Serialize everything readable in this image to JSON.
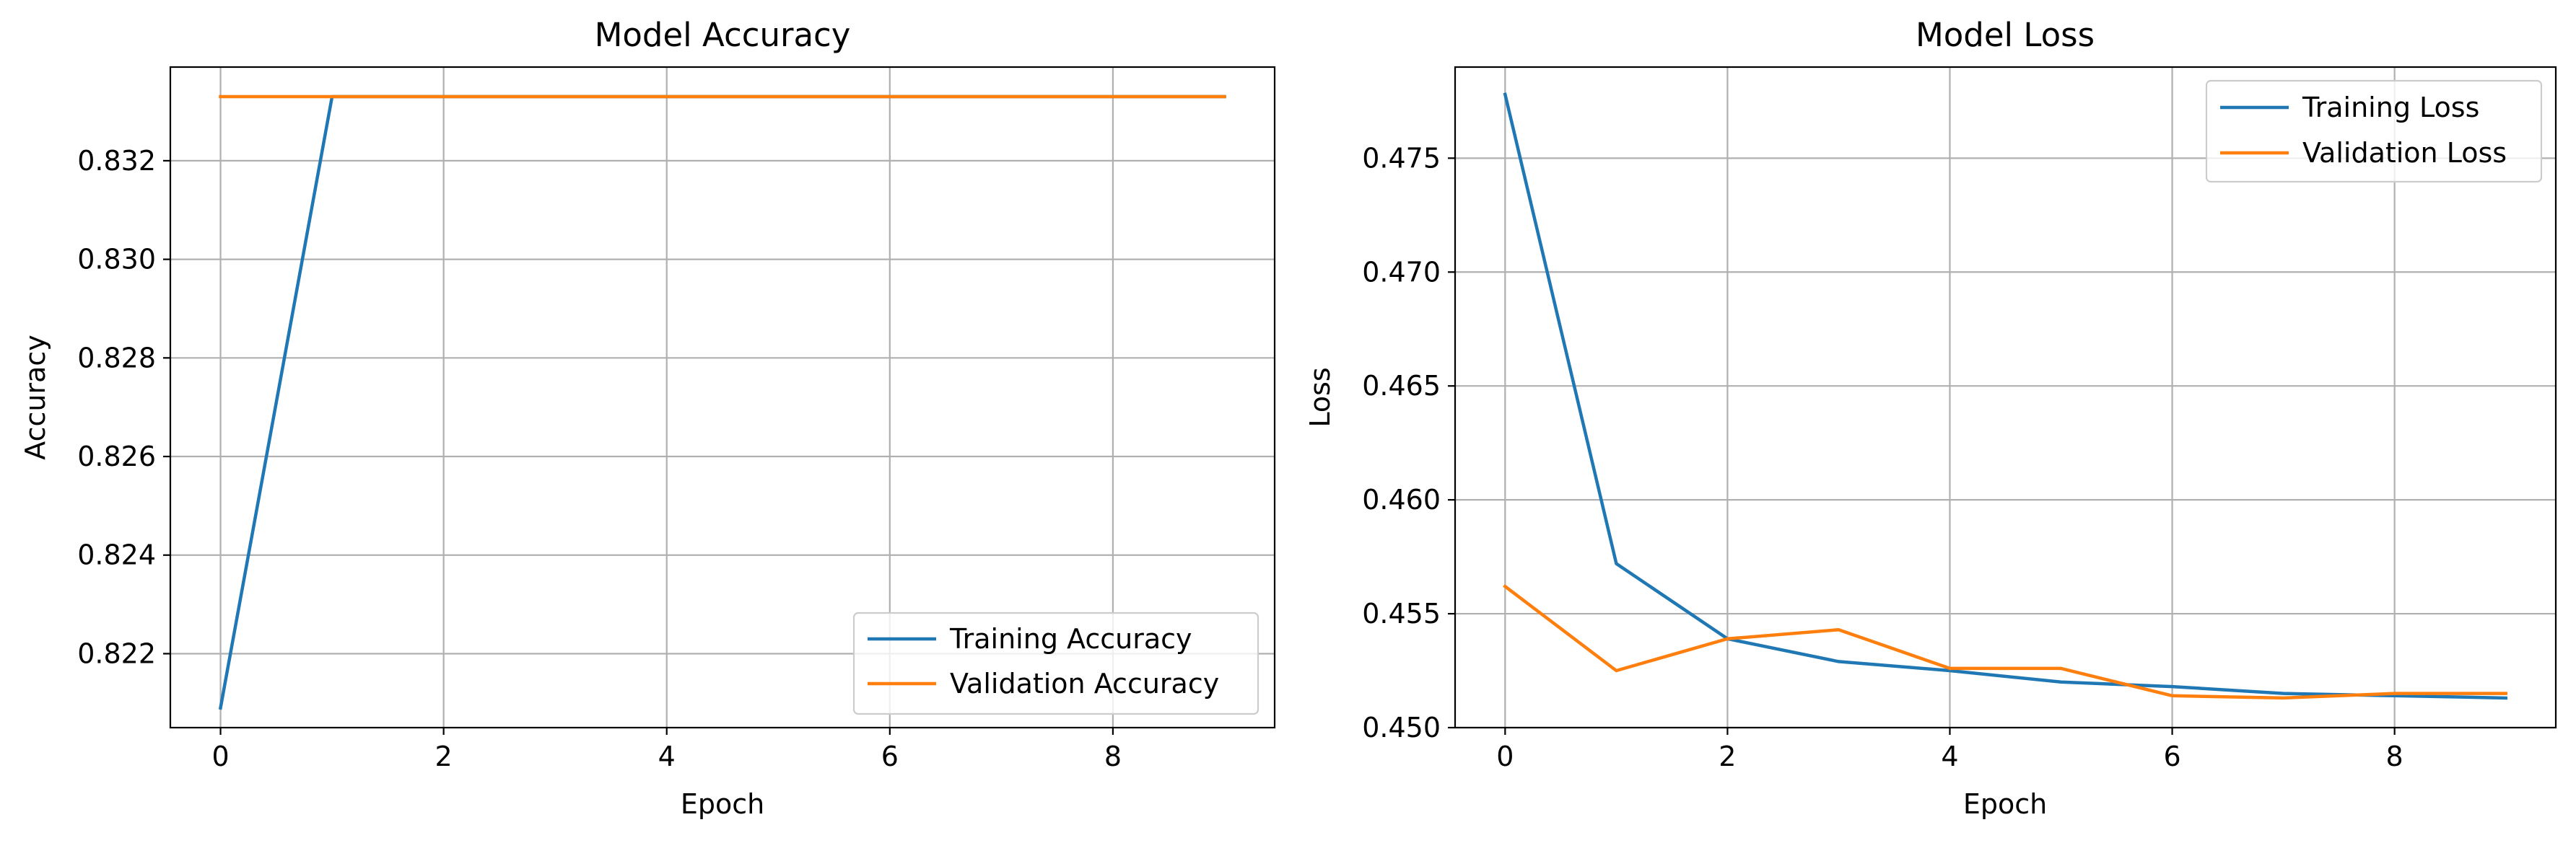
{
  "chart_data": [
    {
      "type": "line",
      "title": "Model Accuracy",
      "xlabel": "Epoch",
      "ylabel": "Accuracy",
      "x": [
        0,
        1,
        2,
        3,
        4,
        5,
        6,
        7,
        8,
        9
      ],
      "xlim": [
        -0.45,
        9.45
      ],
      "ylim": [
        0.8205,
        0.8339
      ],
      "xticks": [
        0,
        2,
        4,
        6,
        8
      ],
      "yticks": [
        0.822,
        0.824,
        0.826,
        0.828,
        0.83,
        0.832
      ],
      "ytick_decimals": 3,
      "grid": true,
      "legend_position": "lower-right",
      "series": [
        {
          "name": "Training Accuracy",
          "color": "#1f77b4",
          "values": [
            0.8209,
            0.8333,
            0.8333,
            0.8333,
            0.8333,
            0.8333,
            0.8333,
            0.8333,
            0.8333,
            0.8333
          ]
        },
        {
          "name": "Validation Accuracy",
          "color": "#ff7f0e",
          "values": [
            0.8333,
            0.8333,
            0.8333,
            0.8333,
            0.8333,
            0.8333,
            0.8333,
            0.8333,
            0.8333,
            0.8333
          ]
        }
      ]
    },
    {
      "type": "line",
      "title": "Model Loss",
      "xlabel": "Epoch",
      "ylabel": "Loss",
      "x": [
        0,
        1,
        2,
        3,
        4,
        5,
        6,
        7,
        8,
        9
      ],
      "xlim": [
        -0.45,
        9.45
      ],
      "ylim": [
        0.45,
        0.479
      ],
      "xticks": [
        0,
        2,
        4,
        6,
        8
      ],
      "yticks": [
        0.45,
        0.455,
        0.46,
        0.465,
        0.47,
        0.475
      ],
      "ytick_decimals": 3,
      "grid": true,
      "legend_position": "upper-right",
      "series": [
        {
          "name": "Training Loss",
          "color": "#1f77b4",
          "values": [
            0.4778,
            0.4572,
            0.4539,
            0.4529,
            0.4525,
            0.452,
            0.4518,
            0.4515,
            0.4514,
            0.4513
          ]
        },
        {
          "name": "Validation Loss",
          "color": "#ff7f0e",
          "values": [
            0.4562,
            0.4525,
            0.4539,
            0.4543,
            0.4526,
            0.4526,
            0.4514,
            0.4513,
            0.4515,
            0.4515
          ]
        }
      ]
    }
  ]
}
